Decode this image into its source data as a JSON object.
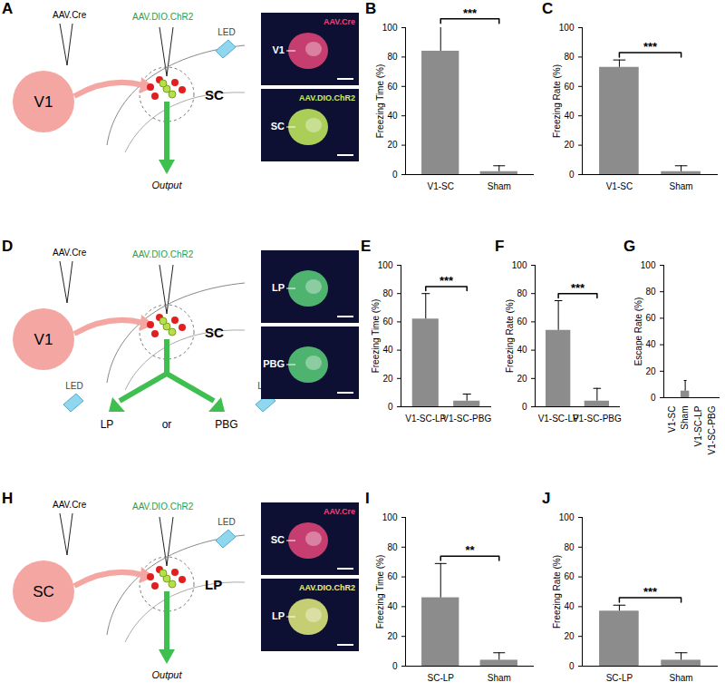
{
  "chart_data": [
    {
      "panel": "B",
      "type": "bar",
      "categories": [
        "V1-SC",
        "Sham"
      ],
      "values": [
        84,
        2
      ],
      "errors": [
        17,
        4
      ],
      "ylabel": "Freezing Time (%)",
      "ylim": [
        0,
        100
      ],
      "yticks": [
        0,
        20,
        40,
        60,
        80,
        100
      ],
      "color": "#8c8c8c",
      "annotation": "***"
    },
    {
      "panel": "C",
      "type": "bar",
      "categories": [
        "V1-SC",
        "Sham"
      ],
      "values": [
        73,
        2
      ],
      "errors": [
        5,
        4
      ],
      "ylabel": "Freezing Rate (%)",
      "ylim": [
        0,
        100
      ],
      "yticks": [
        0,
        20,
        40,
        60,
        80,
        100
      ],
      "color": "#8c8c8c",
      "annotation": "***"
    },
    {
      "panel": "E",
      "type": "bar",
      "categories": [
        "V1-SC-LP",
        "V1-SC-PBG"
      ],
      "values": [
        62,
        4
      ],
      "errors": [
        18,
        5
      ],
      "ylabel": "Freezing Time (%)",
      "ylim": [
        0,
        100
      ],
      "yticks": [
        0,
        20,
        40,
        60,
        80,
        100
      ],
      "color": "#8c8c8c",
      "annotation": "***"
    },
    {
      "panel": "F",
      "type": "bar",
      "categories": [
        "V1-SC-LP",
        "V1-SC-PBG"
      ],
      "values": [
        54,
        4
      ],
      "errors": [
        21,
        9
      ],
      "ylabel": "Freezing Rate (%)",
      "ylim": [
        0,
        100
      ],
      "yticks": [
        0,
        20,
        40,
        60,
        80,
        100
      ],
      "color": "#8c8c8c",
      "annotation": "***"
    },
    {
      "panel": "G",
      "type": "bar",
      "categories": [
        "V1-SC",
        "Sham",
        "V1-SC-LP",
        "V1-SC-PBG"
      ],
      "values": [
        0,
        5,
        0,
        0
      ],
      "errors": [
        0,
        8,
        0,
        0
      ],
      "ylabel": "Escape Rate (%)",
      "ylim": [
        0,
        100
      ],
      "yticks": [
        0,
        20,
        40,
        60,
        80,
        100
      ],
      "color": "#8c8c8c"
    },
    {
      "panel": "I",
      "type": "bar",
      "categories": [
        "SC-LP",
        "Sham"
      ],
      "values": [
        46,
        4
      ],
      "errors": [
        23,
        5
      ],
      "ylabel": "Freezing Time (%)",
      "ylim": [
        0,
        100
      ],
      "yticks": [
        0,
        20,
        40,
        60,
        80,
        100
      ],
      "color": "#8c8c8c",
      "annotation": "**"
    },
    {
      "panel": "J",
      "type": "bar",
      "categories": [
        "SC-LP",
        "Sham"
      ],
      "values": [
        37,
        4
      ],
      "errors": [
        4,
        5
      ],
      "ylabel": "Freezing Rate (%)",
      "ylim": [
        0,
        100
      ],
      "yticks": [
        0,
        20,
        40,
        60,
        80,
        100
      ],
      "color": "#8c8c8c",
      "annotation": "***"
    }
  ],
  "diagrams": [
    {
      "panel": "A",
      "inject1": "AAV.Cre",
      "inject2": "AAV.DIO.ChR2",
      "source": "V1",
      "target": "SC",
      "led": "LED",
      "output": "Output",
      "images": [
        {
          "caption": "AAV.Cre",
          "label": "V1",
          "color": "#e8457a"
        },
        {
          "caption": "AAV.DIO.ChR2",
          "label": "SC",
          "color": "#c8f060"
        }
      ]
    },
    {
      "panel": "D",
      "inject1": "AAV.Cre",
      "inject2": "AAV.DIO.ChR2",
      "source": "V1",
      "target": "SC",
      "led": "LED",
      "branches": [
        "LP",
        "PBG"
      ],
      "join": "or",
      "images": [
        {
          "label": "LP",
          "color": "#5ad07a"
        },
        {
          "label": "PBG",
          "color": "#5ad07a"
        }
      ]
    },
    {
      "panel": "H",
      "inject1": "AAV.Cre",
      "inject2": "AAV.DIO.ChR2",
      "source": "SC",
      "target": "LP",
      "led": "LED",
      "output": "Output",
      "images": [
        {
          "caption": "AAV.Cre",
          "label": "SC",
          "color": "#e8457a"
        },
        {
          "caption": "AAV.DIO.ChR2",
          "label": "LP",
          "color": "#e8f080"
        }
      ]
    }
  ]
}
